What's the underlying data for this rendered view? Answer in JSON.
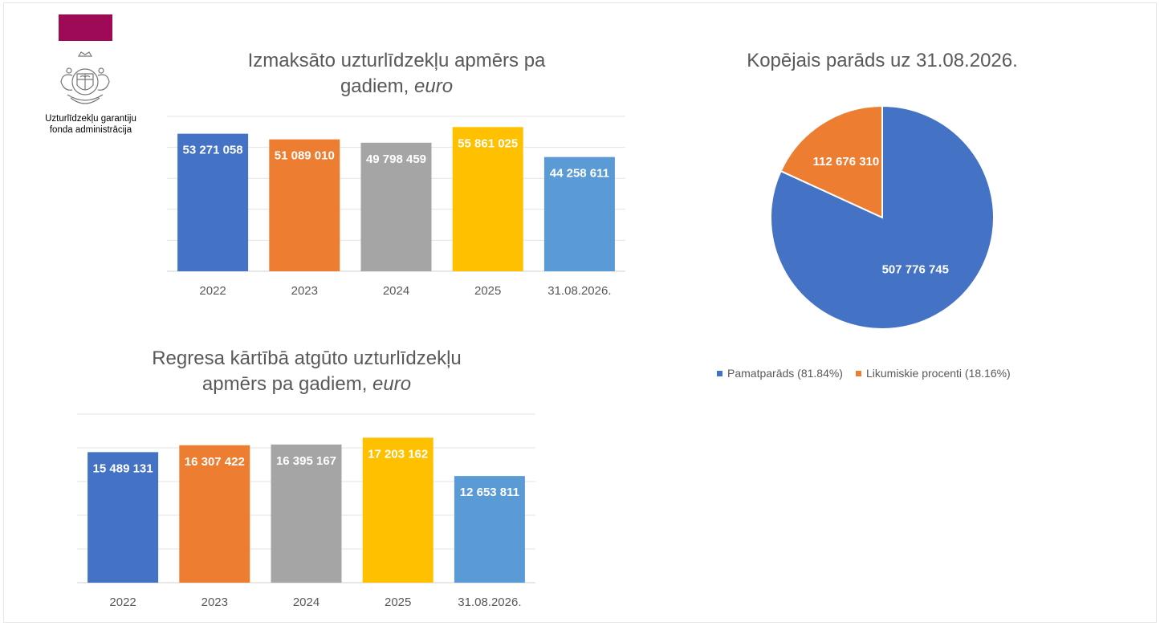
{
  "header": {
    "org_line1": "Uzturlīdzekļu garantiju",
    "org_line2": "fonda administrācija"
  },
  "colors": {
    "blue": "#4472c4",
    "orange": "#ed7d31",
    "gray": "#a5a5a5",
    "yellow": "#ffc000",
    "light_blue": "#5b9bd5",
    "brand": "#9e0a55"
  },
  "chart_data": [
    {
      "type": "bar",
      "title_line1": "Izmaksāto uzturlīdzekļu apmērs pa",
      "title_line2": "gadiem, ",
      "title_unit": "euro",
      "categories": [
        "2022",
        "2023",
        "2024",
        "2025",
        "31.08.2026."
      ],
      "values": [
        53271058,
        51089010,
        49798459,
        55861025,
        44258611
      ],
      "labels": [
        "53 271 058",
        "51 089 010",
        "49 798 459",
        "55 861 025",
        "44 258 611"
      ],
      "ylim": [
        0,
        60000000
      ],
      "grid": true
    },
    {
      "type": "bar",
      "title_line1": "Regresa kārtībā atgūto uzturlīdzekļu",
      "title_line2": "apmērs pa gadiem, ",
      "title_unit": "euro",
      "categories": [
        "2022",
        "2023",
        "2024",
        "2025",
        "31.08.2026."
      ],
      "values": [
        15489131,
        16307422,
        16395167,
        17203162,
        12653811
      ],
      "labels": [
        "15 489 131",
        "16 307 422",
        "16 395 167",
        "17 203 162",
        "12 653 811"
      ],
      "ylim": [
        0,
        20000000
      ],
      "grid": true
    },
    {
      "type": "pie",
      "title": "Kopējais parāds uz 31.08.2026.",
      "slices": [
        {
          "name": "Pamatparāds (81.84%)",
          "value": 507776745,
          "label": "507 776 745",
          "percent": 81.84
        },
        {
          "name": "Likumiskie procenti (18.16%)",
          "value": 112676310,
          "label": "112 676 310",
          "percent": 18.16
        }
      ],
      "legend_position": "bottom"
    }
  ]
}
